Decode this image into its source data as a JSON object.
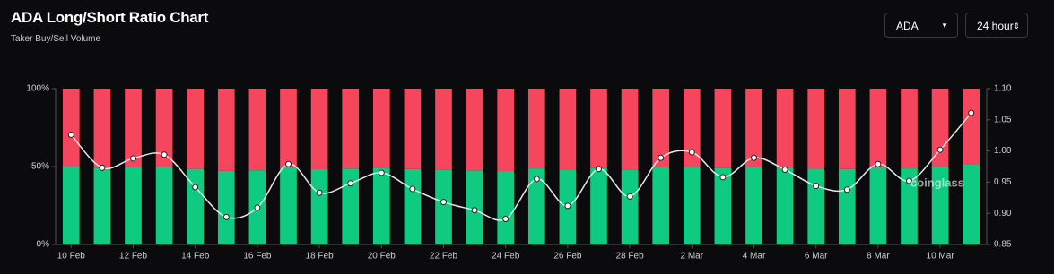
{
  "header": {
    "title": "ADA Long/Short Ratio Chart",
    "subtitle": "Taker Buy/Sell Volume"
  },
  "controls": {
    "symbol": "ADA",
    "interval": "24 hour"
  },
  "chart_data": {
    "type": "bar",
    "stacked": true,
    "watermark": "coinglass",
    "categories": [
      "10 Feb",
      null,
      "12 Feb",
      null,
      "14 Feb",
      null,
      "16 Feb",
      null,
      "18 Feb",
      null,
      "20 Feb",
      null,
      "22 Feb",
      null,
      "24 Feb",
      null,
      "26 Feb",
      null,
      "28 Feb",
      null,
      "2 Mar",
      null,
      "4 Mar",
      null,
      "6 Mar",
      null,
      "8 Mar",
      null,
      "10 Mar",
      null
    ],
    "series": [
      {
        "color": "#0ecb81",
        "values": [
          50.6,
          49.3,
          49.7,
          49.8,
          48.5,
          47.2,
          47.6,
          49.5,
          48.3,
          48.7,
          49.1,
          48.4,
          47.9,
          47.5,
          47.1,
          48.8,
          47.7,
          49.3,
          48.1,
          49.7,
          49.9,
          48.9,
          49.7,
          49.2,
          48.6,
          48.4,
          49.5,
          48.8,
          50.0,
          51.5
        ]
      },
      {
        "color": "#f6465d",
        "values": [
          49.4,
          50.7,
          50.3,
          50.2,
          51.5,
          52.8,
          52.4,
          50.5,
          51.7,
          51.3,
          50.9,
          51.6,
          52.1,
          52.5,
          52.9,
          51.2,
          52.3,
          50.7,
          51.9,
          50.3,
          50.1,
          51.1,
          50.3,
          50.8,
          51.4,
          51.6,
          50.5,
          51.2,
          50.0,
          48.5
        ]
      },
      {
        "type": "line",
        "axis": "y2",
        "color": "#e8e8e8",
        "values": [
          1.026,
          0.973,
          0.988,
          0.994,
          0.942,
          0.894,
          0.909,
          0.979,
          0.933,
          0.948,
          0.965,
          0.939,
          0.918,
          0.905,
          0.891,
          0.955,
          0.912,
          0.971,
          0.927,
          0.989,
          0.998,
          0.958,
          0.989,
          0.97,
          0.944,
          0.938,
          0.979,
          0.952,
          1.002,
          1.061
        ]
      }
    ],
    "ylim": [
      0,
      100
    ],
    "yticks": [
      {
        "value": 0,
        "label": "0%"
      },
      {
        "value": 50,
        "label": "50%"
      },
      {
        "value": 100,
        "label": "100%"
      }
    ],
    "y2lim": [
      0.85,
      1.1
    ],
    "y2ticks": [
      {
        "value": 0.85,
        "label": "0.85"
      },
      {
        "value": 0.9,
        "label": "0.90"
      },
      {
        "value": 0.95,
        "label": "0.95"
      },
      {
        "value": 1.0,
        "label": "1.00"
      },
      {
        "value": 1.05,
        "label": "1.05"
      },
      {
        "value": 1.1,
        "label": "1.10"
      }
    ]
  }
}
